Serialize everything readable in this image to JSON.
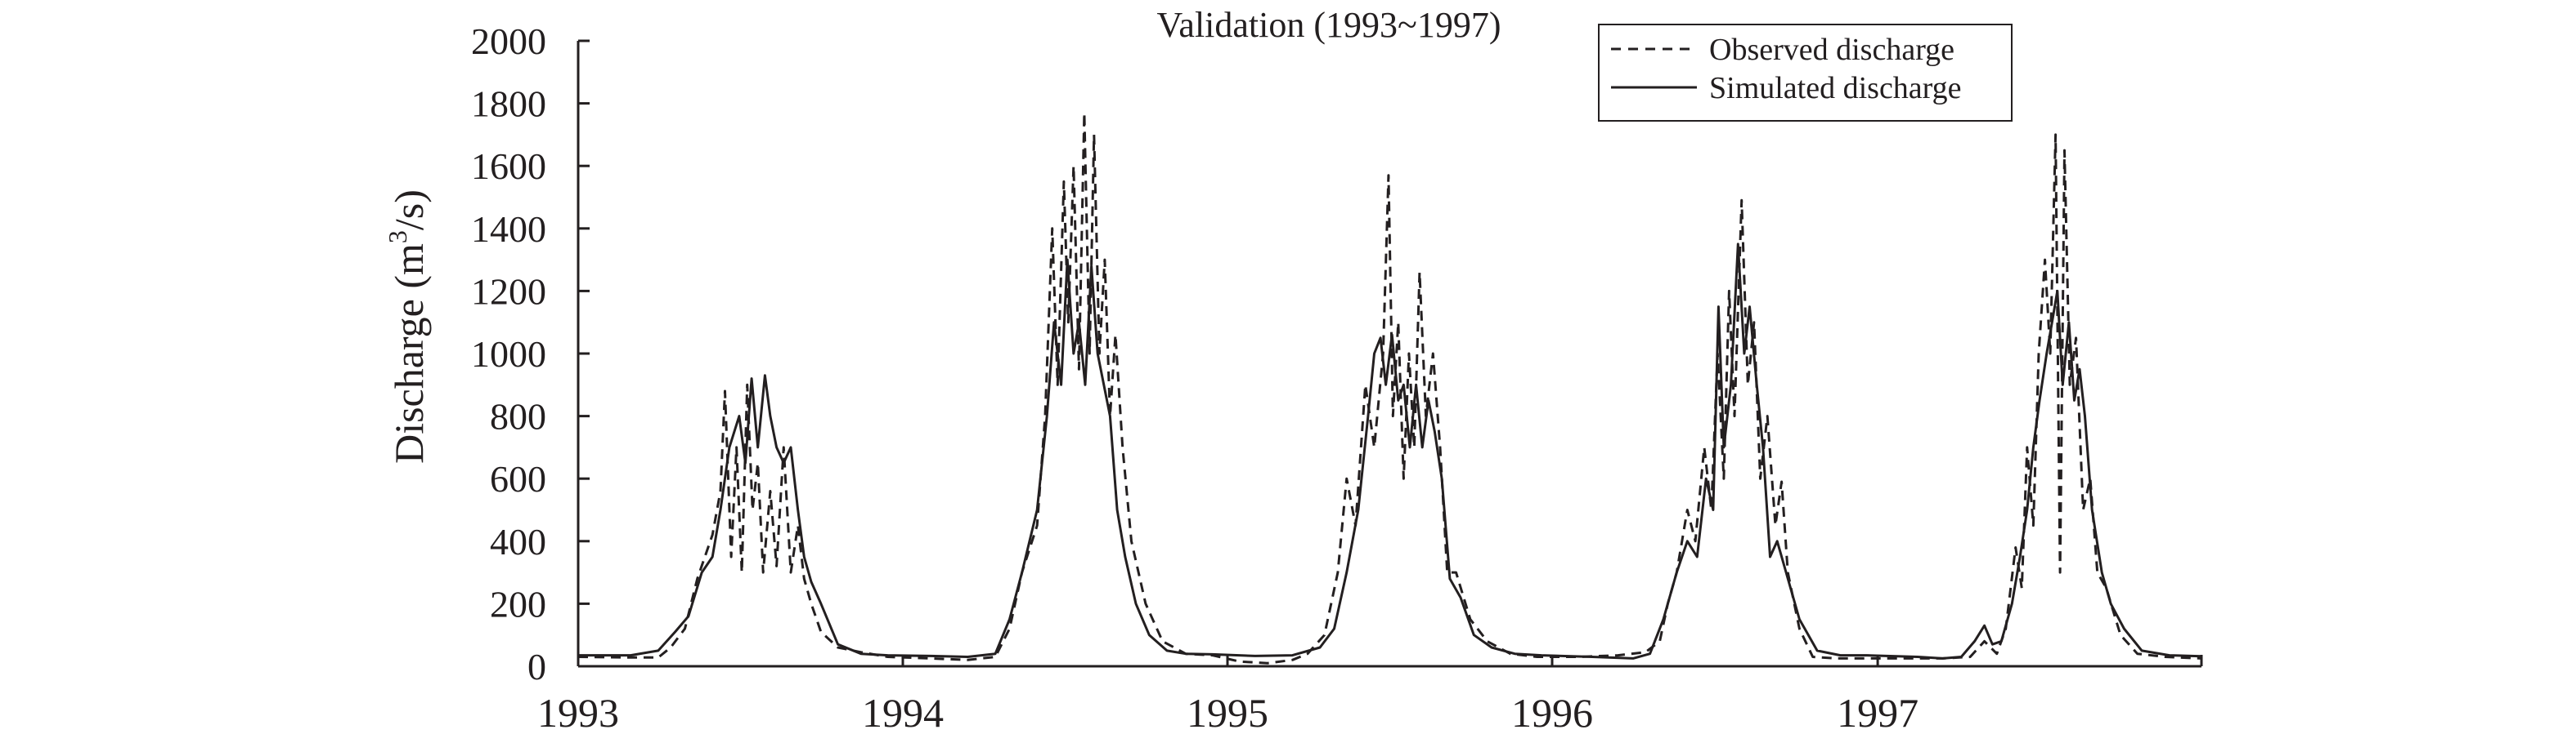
{
  "chart_data": {
    "type": "line",
    "title": "Validation (1993~1997)",
    "ylabel_main": "Discharge (m",
    "ylabel_sup": "3",
    "ylabel_tail": "/s)",
    "ylim": [
      0,
      2000
    ],
    "yticks": [
      0,
      200,
      400,
      600,
      800,
      1000,
      1200,
      1400,
      1600,
      1800,
      2000
    ],
    "xlim": [
      "1993-01-01",
      "1997-12-31"
    ],
    "xticks": [
      "1993",
      "1994",
      "1995",
      "1996",
      "1997"
    ],
    "legend_position": "top-right",
    "colors": {
      "line": "#231f20",
      "background": "#ffffff"
    },
    "series": [
      {
        "name": "Observed discharge",
        "style": "dashed",
        "points": [
          [
            "1993-01-01",
            30
          ],
          [
            "1993-03-01",
            28
          ],
          [
            "1993-04-01",
            28
          ],
          [
            "1993-04-15",
            60
          ],
          [
            "1993-05-01",
            120
          ],
          [
            "1993-05-15",
            280
          ],
          [
            "1993-06-01",
            420
          ],
          [
            "1993-06-10",
            560
          ],
          [
            "1993-06-15",
            880
          ],
          [
            "1993-06-22",
            350
          ],
          [
            "1993-06-28",
            700
          ],
          [
            "1993-07-04",
            300
          ],
          [
            "1993-07-10",
            900
          ],
          [
            "1993-07-16",
            500
          ],
          [
            "1993-07-22",
            650
          ],
          [
            "1993-07-28",
            300
          ],
          [
            "1993-08-05",
            560
          ],
          [
            "1993-08-12",
            320
          ],
          [
            "1993-08-20",
            700
          ],
          [
            "1993-08-28",
            300
          ],
          [
            "1993-09-05",
            450
          ],
          [
            "1993-09-12",
            280
          ],
          [
            "1993-09-20",
            200
          ],
          [
            "1993-10-01",
            110
          ],
          [
            "1993-10-20",
            60
          ],
          [
            "1993-11-15",
            45
          ],
          [
            "1993-12-15",
            30
          ],
          [
            "1994-02-01",
            25
          ],
          [
            "1994-03-15",
            20
          ],
          [
            "1994-04-15",
            30
          ],
          [
            "1994-05-01",
            120
          ],
          [
            "1994-05-15",
            300
          ],
          [
            "1994-06-01",
            450
          ],
          [
            "1994-06-10",
            800
          ],
          [
            "1994-06-18",
            1400
          ],
          [
            "1994-06-24",
            900
          ],
          [
            "1994-07-01",
            1550
          ],
          [
            "1994-07-06",
            1100
          ],
          [
            "1994-07-12",
            1600
          ],
          [
            "1994-07-18",
            950
          ],
          [
            "1994-07-24",
            1770
          ],
          [
            "1994-07-30",
            1000
          ],
          [
            "1994-08-04",
            1700
          ],
          [
            "1994-08-10",
            1000
          ],
          [
            "1994-08-16",
            1300
          ],
          [
            "1994-08-22",
            800
          ],
          [
            "1994-08-28",
            1060
          ],
          [
            "1994-09-05",
            700
          ],
          [
            "1994-09-15",
            400
          ],
          [
            "1994-10-01",
            200
          ],
          [
            "1994-10-20",
            80
          ],
          [
            "1994-11-15",
            40
          ],
          [
            "1994-12-15",
            35
          ],
          [
            "1995-01-15",
            15
          ],
          [
            "1995-02-15",
            10
          ],
          [
            "1995-03-15",
            20
          ],
          [
            "1995-04-01",
            40
          ],
          [
            "1995-04-20",
            100
          ],
          [
            "1995-05-05",
            300
          ],
          [
            "1995-05-15",
            600
          ],
          [
            "1995-05-25",
            450
          ],
          [
            "1995-06-05",
            900
          ],
          [
            "1995-06-15",
            700
          ],
          [
            "1995-06-25",
            1000
          ],
          [
            "1995-07-01",
            1570
          ],
          [
            "1995-07-06",
            800
          ],
          [
            "1995-07-12",
            1100
          ],
          [
            "1995-07-18",
            600
          ],
          [
            "1995-07-24",
            1000
          ],
          [
            "1995-07-30",
            700
          ],
          [
            "1995-08-05",
            1260
          ],
          [
            "1995-08-12",
            800
          ],
          [
            "1995-08-20",
            1000
          ],
          [
            "1995-08-28",
            700
          ],
          [
            "1995-09-05",
            300
          ],
          [
            "1995-09-15",
            300
          ],
          [
            "1995-10-01",
            150
          ],
          [
            "1995-10-20",
            80
          ],
          [
            "1995-11-15",
            40
          ],
          [
            "1995-12-15",
            30
          ],
          [
            "1996-02-01",
            30
          ],
          [
            "1996-03-15",
            35
          ],
          [
            "1996-04-15",
            45
          ],
          [
            "1996-05-01",
            80
          ],
          [
            "1996-05-10",
            200
          ],
          [
            "1996-05-20",
            300
          ],
          [
            "1996-06-01",
            500
          ],
          [
            "1996-06-10",
            400
          ],
          [
            "1996-06-20",
            700
          ],
          [
            "1996-06-28",
            500
          ],
          [
            "1996-07-05",
            1000
          ],
          [
            "1996-07-12",
            600
          ],
          [
            "1996-07-18",
            1200
          ],
          [
            "1996-07-24",
            800
          ],
          [
            "1996-08-01",
            1490
          ],
          [
            "1996-08-08",
            900
          ],
          [
            "1996-08-15",
            1100
          ],
          [
            "1996-08-22",
            600
          ],
          [
            "1996-08-30",
            800
          ],
          [
            "1996-09-08",
            450
          ],
          [
            "1996-09-15",
            590
          ],
          [
            "1996-09-22",
            300
          ],
          [
            "1996-10-05",
            120
          ],
          [
            "1996-10-20",
            30
          ],
          [
            "1996-11-15",
            25
          ],
          [
            "1996-12-15",
            25
          ],
          [
            "1997-02-01",
            25
          ],
          [
            "1997-03-15",
            25
          ],
          [
            "1997-04-15",
            30
          ],
          [
            "1997-05-01",
            80
          ],
          [
            "1997-05-15",
            40
          ],
          [
            "1997-05-25",
            120
          ],
          [
            "1997-06-05",
            380
          ],
          [
            "1997-06-12",
            250
          ],
          [
            "1997-06-18",
            700
          ],
          [
            "1997-06-25",
            450
          ],
          [
            "1997-07-01",
            1000
          ],
          [
            "1997-07-08",
            1300
          ],
          [
            "1997-07-14",
            1000
          ],
          [
            "1997-07-20",
            1700
          ],
          [
            "1997-07-25",
            300
          ],
          [
            "1997-07-30",
            1650
          ],
          [
            "1997-08-05",
            900
          ],
          [
            "1997-08-12",
            1050
          ],
          [
            "1997-08-20",
            500
          ],
          [
            "1997-08-28",
            600
          ],
          [
            "1997-09-05",
            300
          ],
          [
            "1997-09-15",
            250
          ],
          [
            "1997-10-01",
            100
          ],
          [
            "1997-10-20",
            40
          ],
          [
            "1997-11-20",
            30
          ],
          [
            "1997-12-31",
            25
          ]
        ]
      },
      {
        "name": "Simulated discharge",
        "style": "solid",
        "points": [
          [
            "1993-01-01",
            35
          ],
          [
            "1993-03-01",
            35
          ],
          [
            "1993-04-01",
            50
          ],
          [
            "1993-04-20",
            110
          ],
          [
            "1993-05-05",
            160
          ],
          [
            "1993-05-20",
            300
          ],
          [
            "1993-06-01",
            350
          ],
          [
            "1993-06-10",
            500
          ],
          [
            "1993-06-20",
            700
          ],
          [
            "1993-07-01",
            800
          ],
          [
            "1993-07-08",
            650
          ],
          [
            "1993-07-15",
            920
          ],
          [
            "1993-07-22",
            700
          ],
          [
            "1993-07-30",
            930
          ],
          [
            "1993-08-05",
            800
          ],
          [
            "1993-08-12",
            700
          ],
          [
            "1993-08-20",
            650
          ],
          [
            "1993-08-28",
            700
          ],
          [
            "1993-09-05",
            500
          ],
          [
            "1993-09-12",
            350
          ],
          [
            "1993-09-20",
            270
          ],
          [
            "1993-10-01",
            200
          ],
          [
            "1993-10-20",
            70
          ],
          [
            "1993-11-15",
            40
          ],
          [
            "1993-12-15",
            35
          ],
          [
            "1994-02-01",
            33
          ],
          [
            "1994-03-15",
            30
          ],
          [
            "1994-04-15",
            40
          ],
          [
            "1994-05-01",
            150
          ],
          [
            "1994-05-15",
            300
          ],
          [
            "1994-06-01",
            500
          ],
          [
            "1994-06-12",
            800
          ],
          [
            "1994-06-20",
            1100
          ],
          [
            "1994-06-28",
            900
          ],
          [
            "1994-07-05",
            1300
          ],
          [
            "1994-07-12",
            1000
          ],
          [
            "1994-07-18",
            1100
          ],
          [
            "1994-07-25",
            900
          ],
          [
            "1994-08-01",
            1280
          ],
          [
            "1994-08-08",
            1000
          ],
          [
            "1994-08-15",
            900
          ],
          [
            "1994-08-22",
            800
          ],
          [
            "1994-08-30",
            500
          ],
          [
            "1994-09-08",
            350
          ],
          [
            "1994-09-20",
            200
          ],
          [
            "1994-10-05",
            100
          ],
          [
            "1994-10-25",
            50
          ],
          [
            "1994-11-15",
            40
          ],
          [
            "1994-12-15",
            38
          ],
          [
            "1995-02-01",
            33
          ],
          [
            "1995-03-15",
            35
          ],
          [
            "1995-04-15",
            60
          ],
          [
            "1995-05-01",
            120
          ],
          [
            "1995-05-15",
            300
          ],
          [
            "1995-05-28",
            500
          ],
          [
            "1995-06-08",
            800
          ],
          [
            "1995-06-15",
            1000
          ],
          [
            "1995-06-22",
            1050
          ],
          [
            "1995-06-28",
            900
          ],
          [
            "1995-07-05",
            1060
          ],
          [
            "1995-07-12",
            850
          ],
          [
            "1995-07-18",
            900
          ],
          [
            "1995-07-25",
            700
          ],
          [
            "1995-08-01",
            900
          ],
          [
            "1995-08-08",
            700
          ],
          [
            "1995-08-15",
            850
          ],
          [
            "1995-08-22",
            750
          ],
          [
            "1995-08-30",
            600
          ],
          [
            "1995-09-08",
            280
          ],
          [
            "1995-09-20",
            220
          ],
          [
            "1995-10-05",
            100
          ],
          [
            "1995-10-25",
            60
          ],
          [
            "1995-11-20",
            40
          ],
          [
            "1995-12-20",
            35
          ],
          [
            "1996-02-15",
            30
          ],
          [
            "1996-04-01",
            25
          ],
          [
            "1996-04-20",
            40
          ],
          [
            "1996-05-05",
            150
          ],
          [
            "1996-05-20",
            300
          ],
          [
            "1996-06-01",
            400
          ],
          [
            "1996-06-12",
            350
          ],
          [
            "1996-06-22",
            600
          ],
          [
            "1996-06-30",
            500
          ],
          [
            "1996-07-06",
            1150
          ],
          [
            "1996-07-12",
            700
          ],
          [
            "1996-07-20",
            900
          ],
          [
            "1996-07-28",
            1350
          ],
          [
            "1996-08-04",
            1000
          ],
          [
            "1996-08-10",
            1150
          ],
          [
            "1996-08-18",
            900
          ],
          [
            "1996-08-25",
            700
          ],
          [
            "1996-09-02",
            350
          ],
          [
            "1996-09-10",
            400
          ],
          [
            "1996-09-20",
            300
          ],
          [
            "1996-10-05",
            150
          ],
          [
            "1996-10-25",
            50
          ],
          [
            "1996-11-20",
            35
          ],
          [
            "1996-12-20",
            35
          ],
          [
            "1997-02-15",
            30
          ],
          [
            "1997-03-15",
            25
          ],
          [
            "1997-04-05",
            30
          ],
          [
            "1997-04-20",
            80
          ],
          [
            "1997-05-01",
            130
          ],
          [
            "1997-05-10",
            70
          ],
          [
            "1997-05-20",
            80
          ],
          [
            "1997-06-01",
            200
          ],
          [
            "1997-06-10",
            350
          ],
          [
            "1997-06-18",
            500
          ],
          [
            "1997-06-25",
            700
          ],
          [
            "1997-07-02",
            850
          ],
          [
            "1997-07-10",
            1000
          ],
          [
            "1997-07-16",
            1100
          ],
          [
            "1997-07-22",
            1200
          ],
          [
            "1997-07-28",
            900
          ],
          [
            "1997-08-04",
            1100
          ],
          [
            "1997-08-10",
            850
          ],
          [
            "1997-08-16",
            950
          ],
          [
            "1997-08-22",
            800
          ],
          [
            "1997-08-30",
            500
          ],
          [
            "1997-09-10",
            300
          ],
          [
            "1997-09-20",
            200
          ],
          [
            "1997-10-05",
            120
          ],
          [
            "1997-10-25",
            50
          ],
          [
            "1997-11-25",
            35
          ],
          [
            "1997-12-31",
            32
          ]
        ]
      }
    ]
  }
}
